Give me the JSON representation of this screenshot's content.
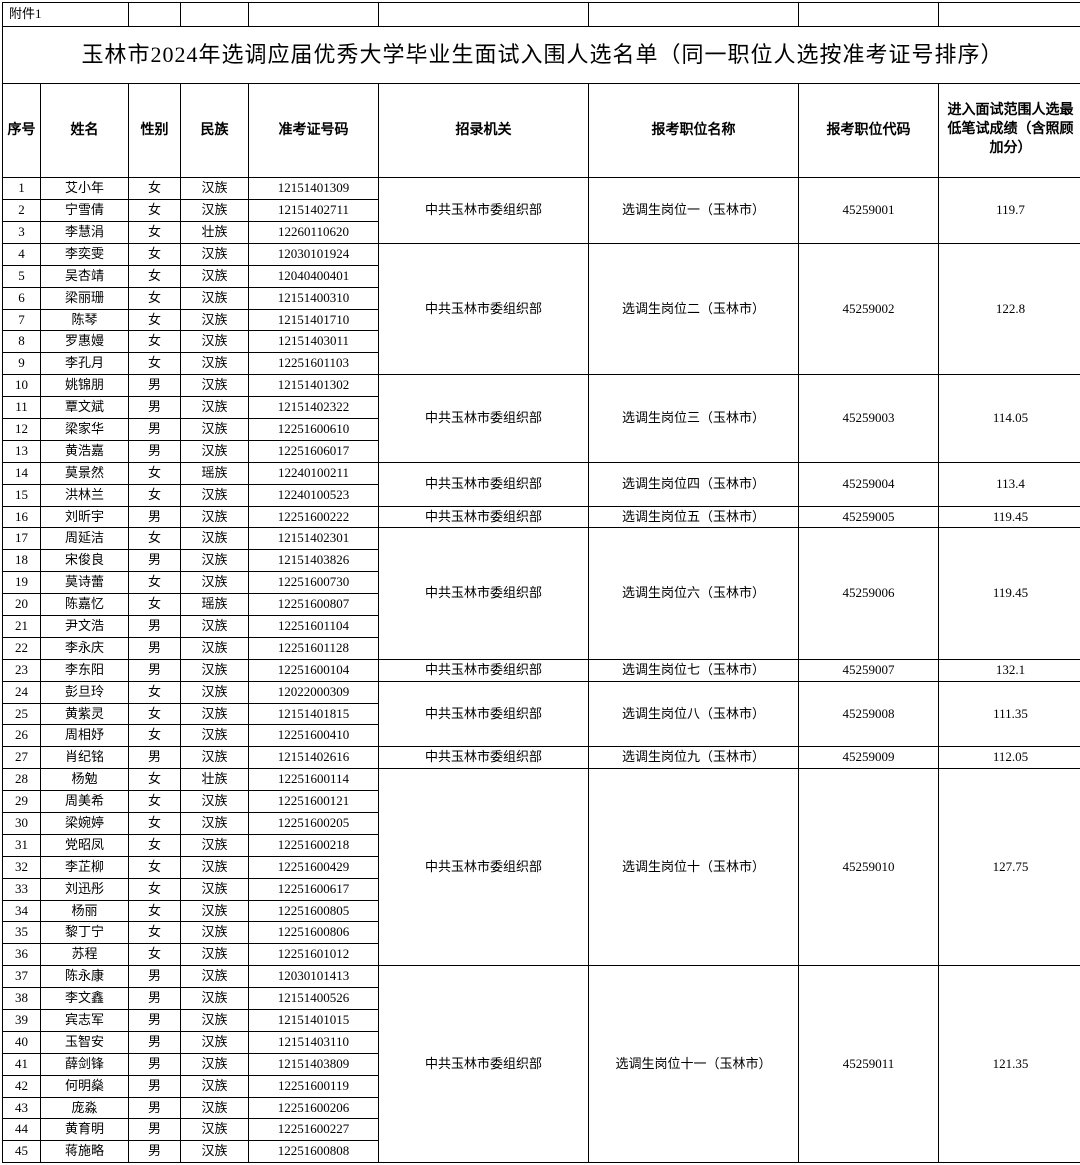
{
  "attachment_label": "附件1",
  "title": "玉林市2024年选调应届优秀大学毕业生面试入围人选名单（同一职位人选按准考证号排序）",
  "headers": {
    "idx": "序号",
    "name": "姓名",
    "sex": "性别",
    "eth": "民族",
    "exam": "准考证号码",
    "org": "招录机关",
    "pos": "报考职位名称",
    "code": "报考职位代码",
    "score": "进入面试范围人选最低笔试成绩（含照顾加分）"
  },
  "groups": [
    {
      "org": "中共玉林市委组织部",
      "pos": "选调生岗位一（玉林市）",
      "code": "45259001",
      "score": "119.7",
      "rows": [
        {
          "i": "1",
          "n": "艾小年",
          "s": "女",
          "e": "汉族",
          "x": "12151401309"
        },
        {
          "i": "2",
          "n": "宁雪倩",
          "s": "女",
          "e": "汉族",
          "x": "12151402711"
        },
        {
          "i": "3",
          "n": "李慧涓",
          "s": "女",
          "e": "壮族",
          "x": "12260110620"
        }
      ]
    },
    {
      "org": "中共玉林市委组织部",
      "pos": "选调生岗位二（玉林市）",
      "code": "45259002",
      "score": "122.8",
      "rows": [
        {
          "i": "4",
          "n": "李奕雯",
          "s": "女",
          "e": "汉族",
          "x": "12030101924"
        },
        {
          "i": "5",
          "n": "吴杏靖",
          "s": "女",
          "e": "汉族",
          "x": "12040400401"
        },
        {
          "i": "6",
          "n": "梁丽珊",
          "s": "女",
          "e": "汉族",
          "x": "12151400310"
        },
        {
          "i": "7",
          "n": "陈琴",
          "s": "女",
          "e": "汉族",
          "x": "12151401710"
        },
        {
          "i": "8",
          "n": "罗惠嫚",
          "s": "女",
          "e": "汉族",
          "x": "12151403011"
        },
        {
          "i": "9",
          "n": "李孔月",
          "s": "女",
          "e": "汉族",
          "x": "12251601103"
        }
      ]
    },
    {
      "org": "中共玉林市委组织部",
      "pos": "选调生岗位三（玉林市）",
      "code": "45259003",
      "score": "114.05",
      "rows": [
        {
          "i": "10",
          "n": "姚锦朋",
          "s": "男",
          "e": "汉族",
          "x": "12151401302"
        },
        {
          "i": "11",
          "n": "覃文斌",
          "s": "男",
          "e": "汉族",
          "x": "12151402322"
        },
        {
          "i": "12",
          "n": "梁家华",
          "s": "男",
          "e": "汉族",
          "x": "12251600610"
        },
        {
          "i": "13",
          "n": "黄浩嘉",
          "s": "男",
          "e": "汉族",
          "x": "12251606017"
        }
      ]
    },
    {
      "org": "中共玉林市委组织部",
      "pos": "选调生岗位四（玉林市）",
      "code": "45259004",
      "score": "113.4",
      "rows": [
        {
          "i": "14",
          "n": "莫景然",
          "s": "女",
          "e": "瑶族",
          "x": "12240100211"
        },
        {
          "i": "15",
          "n": "洪林兰",
          "s": "女",
          "e": "汉族",
          "x": "12240100523"
        }
      ]
    },
    {
      "org": "中共玉林市委组织部",
      "pos": "选调生岗位五（玉林市）",
      "code": "45259005",
      "score": "119.45",
      "rows": [
        {
          "i": "16",
          "n": "刘昕宇",
          "s": "男",
          "e": "汉族",
          "x": "12251600222"
        }
      ]
    },
    {
      "org": "中共玉林市委组织部",
      "pos": "选调生岗位六（玉林市）",
      "code": "45259006",
      "score": "119.45",
      "rows": [
        {
          "i": "17",
          "n": "周延洁",
          "s": "女",
          "e": "汉族",
          "x": "12151402301"
        },
        {
          "i": "18",
          "n": "宋俊良",
          "s": "男",
          "e": "汉族",
          "x": "12151403826"
        },
        {
          "i": "19",
          "n": "莫诗蕾",
          "s": "女",
          "e": "汉族",
          "x": "12251600730"
        },
        {
          "i": "20",
          "n": "陈嘉忆",
          "s": "女",
          "e": "瑶族",
          "x": "12251600807"
        },
        {
          "i": "21",
          "n": "尹文浩",
          "s": "男",
          "e": "汉族",
          "x": "12251601104"
        },
        {
          "i": "22",
          "n": "李永庆",
          "s": "男",
          "e": "汉族",
          "x": "12251601128"
        }
      ]
    },
    {
      "org": "中共玉林市委组织部",
      "pos": "选调生岗位七（玉林市）",
      "code": "45259007",
      "score": "132.1",
      "rows": [
        {
          "i": "23",
          "n": "李东阳",
          "s": "男",
          "e": "汉族",
          "x": "12251600104"
        }
      ]
    },
    {
      "org": "中共玉林市委组织部",
      "pos": "选调生岗位八（玉林市）",
      "code": "45259008",
      "score": "111.35",
      "rows": [
        {
          "i": "24",
          "n": "彭旦玲",
          "s": "女",
          "e": "汉族",
          "x": "12022000309"
        },
        {
          "i": "25",
          "n": "黄紫灵",
          "s": "女",
          "e": "汉族",
          "x": "12151401815"
        },
        {
          "i": "26",
          "n": "周相妤",
          "s": "女",
          "e": "汉族",
          "x": "12251600410"
        }
      ]
    },
    {
      "org": "中共玉林市委组织部",
      "pos": "选调生岗位九（玉林市）",
      "code": "45259009",
      "score": "112.05",
      "rows": [
        {
          "i": "27",
          "n": "肖纪铭",
          "s": "男",
          "e": "汉族",
          "x": "12151402616"
        }
      ]
    },
    {
      "org": "中共玉林市委组织部",
      "pos": "选调生岗位十（玉林市）",
      "code": "45259010",
      "score": "127.75",
      "rows": [
        {
          "i": "28",
          "n": "杨勉",
          "s": "女",
          "e": "壮族",
          "x": "12251600114"
        },
        {
          "i": "29",
          "n": "周美希",
          "s": "女",
          "e": "汉族",
          "x": "12251600121"
        },
        {
          "i": "30",
          "n": "梁婉婷",
          "s": "女",
          "e": "汉族",
          "x": "12251600205"
        },
        {
          "i": "31",
          "n": "党昭凤",
          "s": "女",
          "e": "汉族",
          "x": "12251600218"
        },
        {
          "i": "32",
          "n": "李芷柳",
          "s": "女",
          "e": "汉族",
          "x": "12251600429"
        },
        {
          "i": "33",
          "n": "刘迅彤",
          "s": "女",
          "e": "汉族",
          "x": "12251600617"
        },
        {
          "i": "34",
          "n": "杨丽",
          "s": "女",
          "e": "汉族",
          "x": "12251600805"
        },
        {
          "i": "35",
          "n": "黎丁宁",
          "s": "女",
          "e": "汉族",
          "x": "12251600806"
        },
        {
          "i": "36",
          "n": "苏程",
          "s": "女",
          "e": "汉族",
          "x": "12251601012"
        }
      ]
    },
    {
      "org": "中共玉林市委组织部",
      "pos": "选调生岗位十一（玉林市）",
      "code": "45259011",
      "score": "121.35",
      "rows": [
        {
          "i": "37",
          "n": "陈永康",
          "s": "男",
          "e": "汉族",
          "x": "12030101413"
        },
        {
          "i": "38",
          "n": "李文鑫",
          "s": "男",
          "e": "汉族",
          "x": "12151400526"
        },
        {
          "i": "39",
          "n": "宾志军",
          "s": "男",
          "e": "汉族",
          "x": "12151401015"
        },
        {
          "i": "40",
          "n": "玉智安",
          "s": "男",
          "e": "汉族",
          "x": "12151403110"
        },
        {
          "i": "41",
          "n": "薛剑锋",
          "s": "男",
          "e": "汉族",
          "x": "12151403809"
        },
        {
          "i": "42",
          "n": "何明燊",
          "s": "男",
          "e": "汉族",
          "x": "12251600119"
        },
        {
          "i": "43",
          "n": "庞淼",
          "s": "男",
          "e": "汉族",
          "x": "12251600206"
        },
        {
          "i": "44",
          "n": "黄育明",
          "s": "男",
          "e": "汉族",
          "x": "12251600227"
        },
        {
          "i": "45",
          "n": "蒋施略",
          "s": "男",
          "e": "汉族",
          "x": "12251600808"
        }
      ]
    }
  ]
}
